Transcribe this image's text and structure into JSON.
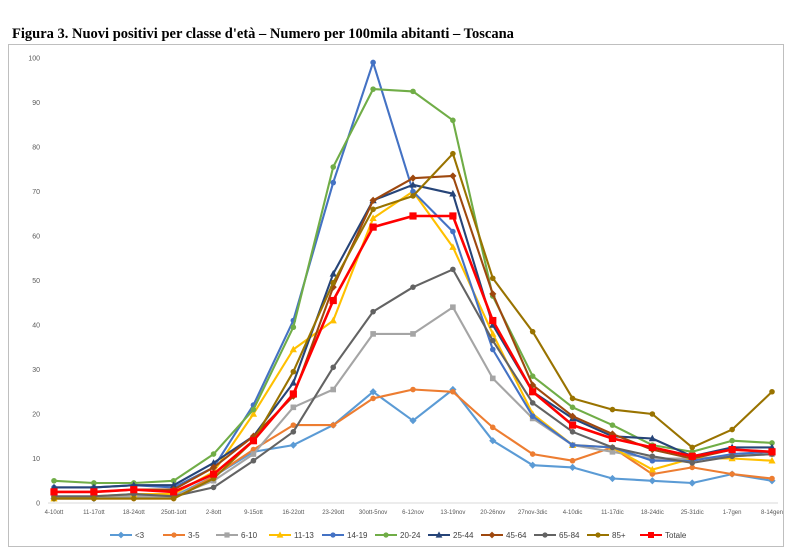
{
  "page_title": "Figura 3. Nuovi positivi per classe d'età – Numero per 100mila abitanti – Toscana",
  "chart_data": {
    "type": "line",
    "title": "Figura 3. Nuovi positivi per classe d'età – Numero per 100mila abitanti – Toscana",
    "xlabel": "",
    "ylabel": "",
    "ylim": [
      0,
      100
    ],
    "yticks": [
      0,
      10,
      20,
      30,
      40,
      50,
      60,
      70,
      80,
      90,
      100
    ],
    "grid": false,
    "legend_position": "bottom",
    "categories": [
      "4-10ott",
      "11-17ott",
      "18-24ott",
      "25ott-1ott",
      "2-8ott",
      "9-15ott",
      "16-22ott",
      "23-29ott",
      "30ott-5nov",
      "6-12nov",
      "13-19nov",
      "20-26nov",
      "27nov-3dic",
      "4-10dic",
      "11-17dic",
      "18-24dic",
      "25-31dic",
      "1-7gen",
      "8-14gen"
    ],
    "series": [
      {
        "name": "<3",
        "color": "#5B9BD5",
        "marker": "diamond",
        "values": [
          1.0,
          1.0,
          1.5,
          1.5,
          6.0,
          11.5,
          13.0,
          17.5,
          25.0,
          18.5,
          25.5,
          14.0,
          8.5,
          8.0,
          5.5,
          5.0,
          4.5,
          6.5,
          5.0
        ]
      },
      {
        "name": "3-5",
        "color": "#ED7D31",
        "marker": "circle",
        "values": [
          1.0,
          1.0,
          1.0,
          1.0,
          6.0,
          12.0,
          17.5,
          17.5,
          23.5,
          25.5,
          25.0,
          17.0,
          11.0,
          9.5,
          12.5,
          6.5,
          8.0,
          6.5,
          5.5
        ]
      },
      {
        "name": "6-10",
        "color": "#A5A5A5",
        "marker": "square",
        "values": [
          1.0,
          1.5,
          1.5,
          1.5,
          5.0,
          11.0,
          21.5,
          25.5,
          38.0,
          38.0,
          44.0,
          28.0,
          19.0,
          13.0,
          11.5,
          10.0,
          10.0,
          10.5,
          11.0
        ]
      },
      {
        "name": "11-13",
        "color": "#FFC000",
        "marker": "triangle",
        "values": [
          1.0,
          1.5,
          2.0,
          2.0,
          7.0,
          20.0,
          34.5,
          41.0,
          64.0,
          70.0,
          57.5,
          38.0,
          20.0,
          13.0,
          12.5,
          7.5,
          10.0,
          10.0,
          9.5
        ]
      },
      {
        "name": "14-19",
        "color": "#4472C4",
        "marker": "circle",
        "values": [
          3.5,
          3.5,
          4.0,
          3.5,
          8.0,
          22.0,
          41.0,
          72.0,
          99.0,
          70.0,
          61.0,
          34.5,
          19.5,
          13.0,
          12.5,
          9.5,
          9.5,
          11.0,
          11.5
        ]
      },
      {
        "name": "20-24",
        "color": "#70AD47",
        "marker": "circle",
        "values": [
          5.0,
          4.5,
          4.5,
          5.0,
          11.0,
          21.0,
          39.5,
          75.5,
          93.0,
          92.5,
          86.0,
          46.5,
          28.5,
          21.5,
          17.5,
          13.0,
          11.5,
          14.0,
          13.5
        ]
      },
      {
        "name": "25-44",
        "color": "#264478",
        "marker": "triangle",
        "values": [
          3.5,
          3.5,
          4.0,
          4.0,
          9.0,
          15.0,
          27.0,
          51.5,
          68.0,
          71.5,
          69.5,
          40.0,
          25.0,
          19.0,
          15.0,
          14.5,
          10.5,
          12.5,
          12.5
        ]
      },
      {
        "name": "45-64",
        "color": "#9E480E",
        "marker": "diamond",
        "values": [
          2.5,
          2.5,
          3.0,
          3.0,
          8.0,
          15.0,
          24.0,
          48.5,
          68.0,
          73.0,
          73.5,
          47.0,
          26.5,
          19.5,
          15.5,
          12.0,
          10.0,
          12.0,
          11.5
        ]
      },
      {
        "name": "65-84",
        "color": "#636363",
        "marker": "circle",
        "values": [
          1.5,
          1.5,
          2.0,
          1.5,
          3.5,
          9.5,
          16.0,
          30.5,
          43.0,
          48.5,
          52.5,
          36.5,
          22.5,
          16.0,
          12.5,
          10.5,
          9.0,
          10.5,
          11.0
        ]
      },
      {
        "name": "85+",
        "color": "#997300",
        "marker": "circle",
        "values": [
          1.0,
          1.0,
          1.0,
          1.0,
          5.5,
          14.0,
          29.5,
          49.5,
          66.0,
          69.0,
          78.5,
          50.5,
          38.5,
          23.5,
          21.0,
          20.0,
          12.5,
          16.5,
          25.0
        ]
      },
      {
        "name": "Totale",
        "color": "#FF0000",
        "marker": "square",
        "values": [
          2.5,
          2.5,
          3.0,
          2.5,
          6.5,
          14.0,
          24.5,
          45.5,
          62.0,
          64.5,
          64.5,
          41.0,
          25.0,
          17.5,
          14.5,
          12.5,
          10.5,
          12.0,
          11.5
        ]
      }
    ]
  }
}
